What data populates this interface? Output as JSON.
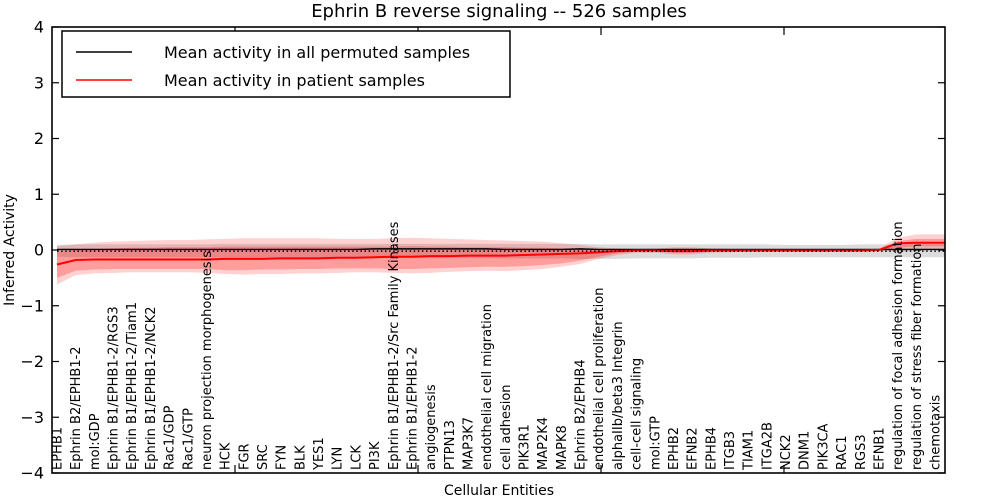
{
  "legend": {
    "entries": [
      {
        "label": "Mean activity in all permuted samples",
        "color": "#000000"
      },
      {
        "label": "Mean activity in patient samples",
        "color": "#ff0000"
      }
    ]
  },
  "chart_data": {
    "type": "line",
    "title": "Ephrin B reverse signaling -- 526 samples",
    "xlabel": "Cellular Entities",
    "ylabel": "Inferred Activity",
    "ylim": [
      -4,
      4
    ],
    "yticks": [
      "4",
      "3",
      "2",
      "1",
      "0",
      "−1",
      "−2",
      "−3",
      "−4"
    ],
    "grid": false,
    "legend_position": "upper left",
    "categories": [
      "EPHB1",
      "Ephrin B2/EPHB1-2",
      "mol:GDP",
      "Ephrin B1/EPHB1-2/RGS3",
      "Ephrin B1/EPHB1-2/Tiam1",
      "Ephrin B1/EPHB1-2/NCK2",
      "Rac1/GDP",
      "Rac1/GTP",
      "neuron projection morphogenesis",
      "HCK",
      "FGR",
      "SRC",
      "FYN",
      "BLK",
      "YES1",
      "LYN",
      "LCK",
      "PI3K",
      "Ephrin B1/EPHB1-2/Src Family Kinases",
      "Ephrin B1/EPHB1-2",
      "angiogenesis",
      "PTPN13",
      "MAP3K7",
      "endothelial cell migration",
      "cell adhesion",
      "PIK3R1",
      "MAP2K4",
      "MAPK8",
      "Ephrin B2/EPHB4",
      "endothelial cell proliferation",
      "alphaIIb/beta3 Integrin",
      "cell-cell signaling",
      "mol:GTP",
      "EPHB2",
      "EFNB2",
      "EPHB4",
      "ITGB3",
      "TIAM1",
      "ITGA2B",
      "NCK2",
      "DNM1",
      "PIK3CA",
      "RAC1",
      "RGS3",
      "EFNB1",
      "regulation of focal adhesion formation",
      "regulation of stress fiber formation",
      "chemotaxis"
    ],
    "series": [
      {
        "name": "permuted-mean-line",
        "label": "Mean activity in all permuted samples",
        "color": "#000000",
        "style": "solid",
        "width": 1.4,
        "values": [
          0.01,
          0.01,
          0.01,
          0.01,
          0.01,
          0.01,
          0.01,
          0.01,
          0.01,
          0.01,
          0.01,
          0.01,
          0.01,
          0.01,
          0.01,
          0.01,
          0.01,
          0.02,
          0.02,
          0.02,
          0.02,
          0.02,
          0.02,
          0.02,
          0.01,
          0.01,
          0.01,
          0.01,
          0.02,
          0.01,
          0.01,
          0.01,
          0.01,
          0.01,
          0.01,
          0.01,
          0.01,
          0.01,
          0.01,
          0.01,
          0.01,
          0.01,
          0.01,
          0.01,
          0.01,
          0.01,
          0.01,
          0.01
        ]
      },
      {
        "name": "patient-mean-line",
        "label": "Mean activity in patient samples",
        "color": "#ff0000",
        "style": "solid",
        "width": 2,
        "values": [
          -0.26,
          -0.18,
          -0.17,
          -0.17,
          -0.17,
          -0.17,
          -0.17,
          -0.17,
          -0.17,
          -0.16,
          -0.16,
          -0.16,
          -0.15,
          -0.15,
          -0.15,
          -0.14,
          -0.14,
          -0.13,
          -0.12,
          -0.12,
          -0.11,
          -0.11,
          -0.1,
          -0.1,
          -0.1,
          -0.09,
          -0.08,
          -0.07,
          -0.06,
          -0.04,
          -0.02,
          -0.01,
          -0.01,
          -0.02,
          -0.02,
          -0.01,
          -0.01,
          -0.01,
          -0.01,
          -0.01,
          -0.01,
          -0.01,
          -0.01,
          -0.01,
          0.0,
          0.12,
          0.13,
          0.13
        ]
      },
      {
        "name": "zero-reference-line",
        "label": "zero reference (dotted)",
        "color": "#000000",
        "style": "dotted",
        "width": 1.5,
        "values": [
          -0.02,
          -0.02,
          -0.02,
          -0.02,
          -0.02,
          -0.02,
          -0.02,
          -0.02,
          -0.02,
          -0.02,
          -0.02,
          -0.02,
          -0.02,
          -0.02,
          -0.02,
          -0.02,
          -0.02,
          -0.02,
          -0.02,
          -0.02,
          -0.02,
          -0.02,
          -0.02,
          -0.02,
          -0.02,
          -0.02,
          -0.02,
          -0.02,
          -0.02,
          -0.02,
          -0.02,
          -0.02,
          -0.02,
          -0.02,
          -0.02,
          -0.02,
          -0.02,
          -0.02,
          -0.02,
          -0.02,
          -0.02,
          -0.02,
          -0.02,
          -0.02,
          -0.02,
          -0.02,
          -0.02,
          -0.02
        ]
      }
    ],
    "bands": [
      {
        "name": "permuted-std-band",
        "color": "#808080",
        "opacity": 0.28,
        "top": [
          0.09,
          0.1,
          0.1,
          0.1,
          0.1,
          0.1,
          0.1,
          0.1,
          0.1,
          0.11,
          0.11,
          0.11,
          0.11,
          0.11,
          0.11,
          0.11,
          0.11,
          0.11,
          0.11,
          0.11,
          0.11,
          0.11,
          0.11,
          0.11,
          0.11,
          0.11,
          0.11,
          0.11,
          0.11,
          0.1,
          0.1,
          0.1,
          0.1,
          0.1,
          0.1,
          0.1,
          0.1,
          0.1,
          0.1,
          0.09,
          0.09,
          0.09,
          0.09,
          0.1,
          0.1,
          0.1,
          0.1,
          0.1
        ],
        "bottom": [
          -0.12,
          -0.13,
          -0.13,
          -0.13,
          -0.13,
          -0.13,
          -0.13,
          -0.13,
          -0.13,
          -0.14,
          -0.14,
          -0.14,
          -0.14,
          -0.14,
          -0.14,
          -0.14,
          -0.14,
          -0.14,
          -0.14,
          -0.14,
          -0.14,
          -0.14,
          -0.14,
          -0.14,
          -0.15,
          -0.15,
          -0.15,
          -0.15,
          -0.16,
          -0.16,
          -0.16,
          -0.15,
          -0.15,
          -0.15,
          -0.15,
          -0.14,
          -0.14,
          -0.14,
          -0.13,
          -0.13,
          -0.13,
          -0.13,
          -0.13,
          -0.13,
          -0.13,
          -0.13,
          -0.13,
          -0.13
        ]
      },
      {
        "name": "patient-std-outer-band",
        "color": "#ff0000",
        "opacity": 0.18,
        "top": [
          0.07,
          0.1,
          0.13,
          0.15,
          0.16,
          0.17,
          0.18,
          0.18,
          0.19,
          0.2,
          0.21,
          0.21,
          0.21,
          0.21,
          0.21,
          0.2,
          0.2,
          0.2,
          0.21,
          0.22,
          0.21,
          0.2,
          0.19,
          0.18,
          0.17,
          0.16,
          0.15,
          0.12,
          0.09,
          0.05,
          0.03,
          0.02,
          0.02,
          0.05,
          0.05,
          0.03,
          0.02,
          0.01,
          0.01,
          0.01,
          0.01,
          0.01,
          0.01,
          0.01,
          0.02,
          0.22,
          0.28,
          0.28
        ],
        "bottom": [
          -0.62,
          -0.45,
          -0.42,
          -0.41,
          -0.4,
          -0.4,
          -0.4,
          -0.4,
          -0.41,
          -0.43,
          -0.44,
          -0.43,
          -0.43,
          -0.42,
          -0.42,
          -0.41,
          -0.4,
          -0.4,
          -0.41,
          -0.42,
          -0.41,
          -0.39,
          -0.38,
          -0.37,
          -0.38,
          -0.36,
          -0.34,
          -0.3,
          -0.25,
          -0.16,
          -0.09,
          -0.05,
          -0.05,
          -0.08,
          -0.08,
          -0.05,
          -0.04,
          -0.03,
          -0.03,
          -0.03,
          -0.03,
          -0.03,
          -0.03,
          -0.03,
          -0.02,
          -0.02,
          0.0,
          0.0
        ]
      },
      {
        "name": "patient-std-inner-band",
        "color": "#ff0000",
        "opacity": 0.25,
        "top": [
          -0.03,
          0.0,
          0.02,
          0.03,
          0.04,
          0.04,
          0.05,
          0.05,
          0.05,
          0.06,
          0.06,
          0.06,
          0.06,
          0.06,
          0.06,
          0.06,
          0.06,
          0.06,
          0.06,
          0.07,
          0.06,
          0.06,
          0.05,
          0.05,
          0.05,
          0.04,
          0.04,
          0.03,
          0.02,
          0.01,
          0.0,
          0.0,
          0.0,
          0.02,
          0.02,
          0.01,
          0.0,
          0.0,
          0.0,
          0.0,
          0.0,
          0.0,
          0.0,
          0.0,
          0.01,
          0.16,
          0.2,
          0.2
        ],
        "bottom": [
          -0.5,
          -0.37,
          -0.35,
          -0.34,
          -0.34,
          -0.34,
          -0.34,
          -0.34,
          -0.34,
          -0.36,
          -0.36,
          -0.35,
          -0.35,
          -0.34,
          -0.34,
          -0.33,
          -0.33,
          -0.33,
          -0.34,
          -0.34,
          -0.33,
          -0.32,
          -0.31,
          -0.3,
          -0.3,
          -0.29,
          -0.27,
          -0.24,
          -0.19,
          -0.12,
          -0.06,
          -0.03,
          -0.03,
          -0.05,
          -0.05,
          -0.03,
          -0.02,
          -0.02,
          -0.02,
          -0.02,
          -0.02,
          -0.02,
          -0.02,
          -0.02,
          -0.01,
          0.04,
          0.07,
          0.07
        ]
      }
    ]
  }
}
